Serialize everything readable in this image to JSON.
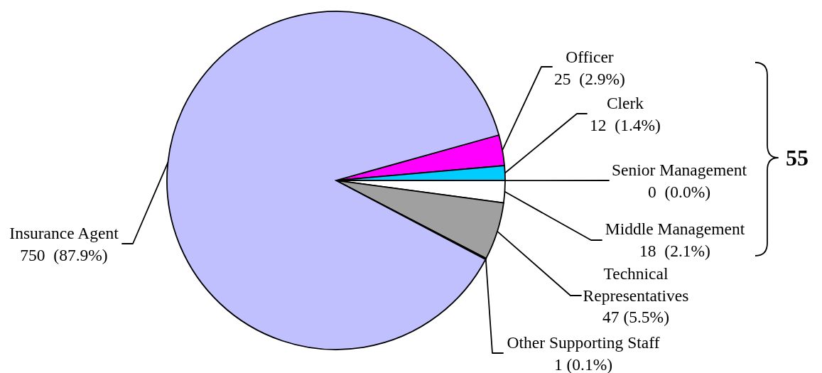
{
  "chart_data": {
    "type": "pie",
    "categories": [
      "Officer",
      "Clerk",
      "Senior Management",
      "Middle Management",
      "Technical Representatives",
      "Other Supporting Staff",
      "Insurance Agent"
    ],
    "values": [
      25,
      12,
      0,
      18,
      47,
      1,
      750
    ],
    "colors": [
      "#ff00ff",
      "#00ccff",
      "#ffffff",
      "#ffffff",
      "#a0a0a0",
      "#ffffff",
      "#c0c0ff"
    ],
    "value_labels": [
      "25  (2.9%)",
      "12  (1.4%)",
      "0  (0.0%)",
      "18  (2.1%)",
      "47 (5.5%)",
      "1 (0.1%)",
      "750  (87.9%)"
    ],
    "annotations": [
      "55"
    ]
  }
}
